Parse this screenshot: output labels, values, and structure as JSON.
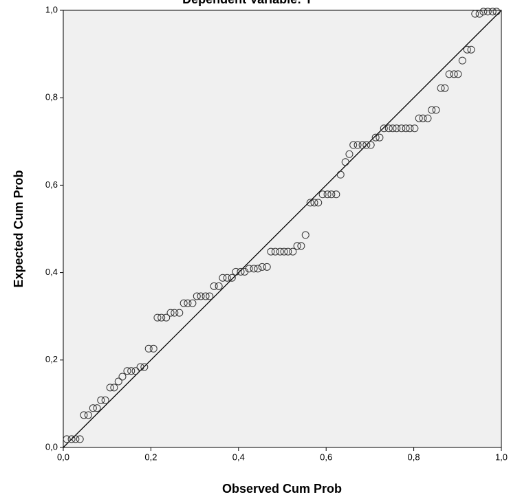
{
  "chart_data": {
    "type": "scatter",
    "title": "Dependent Variable: Y",
    "x_label": "Observed Cum Prob",
    "y_label": "Expected Cum Prob",
    "x": [
      0.008,
      0.019,
      0.028,
      0.038,
      0.047,
      0.057,
      0.068,
      0.077,
      0.086,
      0.096,
      0.107,
      0.116,
      0.126,
      0.135,
      0.146,
      0.155,
      0.165,
      0.176,
      0.185,
      0.195,
      0.206,
      0.215,
      0.224,
      0.235,
      0.245,
      0.254,
      0.265,
      0.275,
      0.284,
      0.295,
      0.305,
      0.314,
      0.325,
      0.334,
      0.344,
      0.355,
      0.364,
      0.374,
      0.385,
      0.394,
      0.405,
      0.414,
      0.424,
      0.435,
      0.444,
      0.454,
      0.465,
      0.474,
      0.484,
      0.495,
      0.504,
      0.513,
      0.524,
      0.534,
      0.543,
      0.553,
      0.564,
      0.573,
      0.582,
      0.592,
      0.603,
      0.612,
      0.623,
      0.633,
      0.644,
      0.653,
      0.662,
      0.672,
      0.683,
      0.692,
      0.702,
      0.713,
      0.722,
      0.732,
      0.743,
      0.752,
      0.761,
      0.772,
      0.782,
      0.791,
      0.802,
      0.812,
      0.821,
      0.832,
      0.841,
      0.851,
      0.862,
      0.871,
      0.881,
      0.892,
      0.901,
      0.911,
      0.922,
      0.931,
      0.94,
      0.95,
      0.959,
      0.969,
      0.98,
      0.989
    ],
    "y": [
      0.019,
      0.019,
      0.019,
      0.019,
      0.074,
      0.074,
      0.09,
      0.09,
      0.108,
      0.108,
      0.137,
      0.137,
      0.151,
      0.162,
      0.175,
      0.175,
      0.175,
      0.184,
      0.184,
      0.226,
      0.226,
      0.297,
      0.297,
      0.297,
      0.308,
      0.308,
      0.308,
      0.33,
      0.33,
      0.33,
      0.346,
      0.346,
      0.346,
      0.346,
      0.369,
      0.369,
      0.388,
      0.388,
      0.388,
      0.402,
      0.402,
      0.402,
      0.409,
      0.409,
      0.409,
      0.413,
      0.413,
      0.448,
      0.448,
      0.448,
      0.448,
      0.448,
      0.448,
      0.461,
      0.461,
      0.486,
      0.56,
      0.56,
      0.56,
      0.579,
      0.579,
      0.579,
      0.579,
      0.624,
      0.653,
      0.671,
      0.692,
      0.692,
      0.692,
      0.692,
      0.692,
      0.709,
      0.709,
      0.73,
      0.73,
      0.73,
      0.73,
      0.73,
      0.73,
      0.73,
      0.73,
      0.753,
      0.753,
      0.753,
      0.772,
      0.772,
      0.822,
      0.822,
      0.854,
      0.854,
      0.854,
      0.885,
      0.91,
      0.91,
      0.992,
      0.992,
      0.997,
      0.997,
      0.997,
      0.997
    ],
    "xlim": [
      0,
      1
    ],
    "ylim": [
      0,
      1
    ],
    "xticks": [
      {
        "value": 0,
        "label": "0,0"
      },
      {
        "value": 0.2,
        "label": "0,2"
      },
      {
        "value": 0.4,
        "label": "0,4"
      },
      {
        "value": 0.6,
        "label": "0,6"
      },
      {
        "value": 0.8,
        "label": "0,8"
      },
      {
        "value": 1,
        "label": "1,0"
      }
    ],
    "yticks": [
      {
        "value": 0,
        "label": "0,0"
      },
      {
        "value": 0.2,
        "label": "0,2"
      },
      {
        "value": 0.4,
        "label": "0,4"
      },
      {
        "value": 0.6,
        "label": "0,6"
      },
      {
        "value": 0.8,
        "label": "0,8"
      },
      {
        "value": 1,
        "label": "1,0"
      }
    ],
    "color": "#333333",
    "background": "#f0f0f0"
  }
}
